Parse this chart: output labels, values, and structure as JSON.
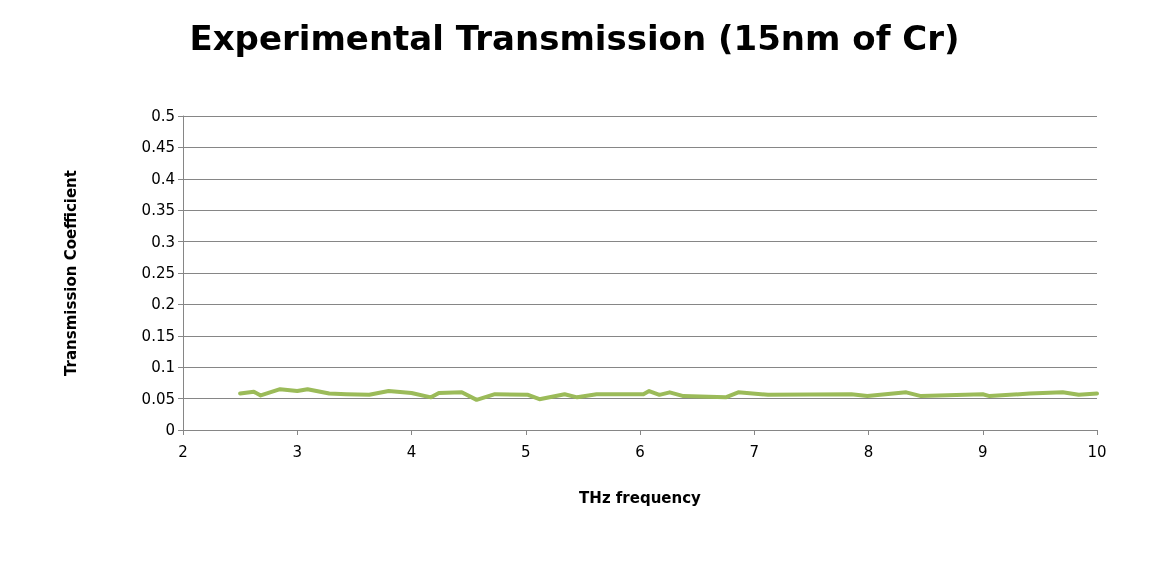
{
  "chart_data": {
    "type": "line",
    "title": "Experimental Transmission (15nm of Cr)",
    "xlabel": "THz frequency",
    "ylabel": "Transmission Coefficient",
    "xlim": [
      2,
      10
    ],
    "xticks": [
      2,
      3,
      4,
      5,
      6,
      7,
      8,
      9,
      10
    ],
    "ylim": [
      0,
      0.5
    ],
    "yticks": [
      0,
      0.05,
      0.1,
      0.15,
      0.2,
      0.25,
      0.3,
      0.35,
      0.4,
      0.45,
      0.5
    ],
    "grid": "y",
    "marker": "none",
    "line_style": "solid",
    "series": [
      {
        "color": "#9bbb59",
        "x": [
          2.5,
          2.62,
          2.68,
          2.85,
          3.0,
          3.09,
          3.28,
          3.43,
          3.63,
          3.8,
          4.0,
          4.17,
          4.24,
          4.44,
          4.57,
          4.73,
          5.02,
          5.12,
          5.34,
          5.45,
          5.62,
          6.03,
          6.08,
          6.17,
          6.26,
          6.38,
          6.75,
          6.86,
          7.12,
          7.85,
          7.99,
          8.33,
          8.46,
          9.0,
          9.06,
          9.41,
          9.7,
          9.84,
          10.0
        ],
        "values": [
          0.058,
          0.061,
          0.055,
          0.065,
          0.062,
          0.065,
          0.058,
          0.057,
          0.056,
          0.062,
          0.059,
          0.052,
          0.059,
          0.06,
          0.048,
          0.057,
          0.056,
          0.049,
          0.057,
          0.052,
          0.057,
          0.057,
          0.062,
          0.056,
          0.06,
          0.054,
          0.052,
          0.06,
          0.056,
          0.057,
          0.054,
          0.06,
          0.054,
          0.057,
          0.054,
          0.058,
          0.06,
          0.056,
          0.058
        ]
      }
    ]
  }
}
